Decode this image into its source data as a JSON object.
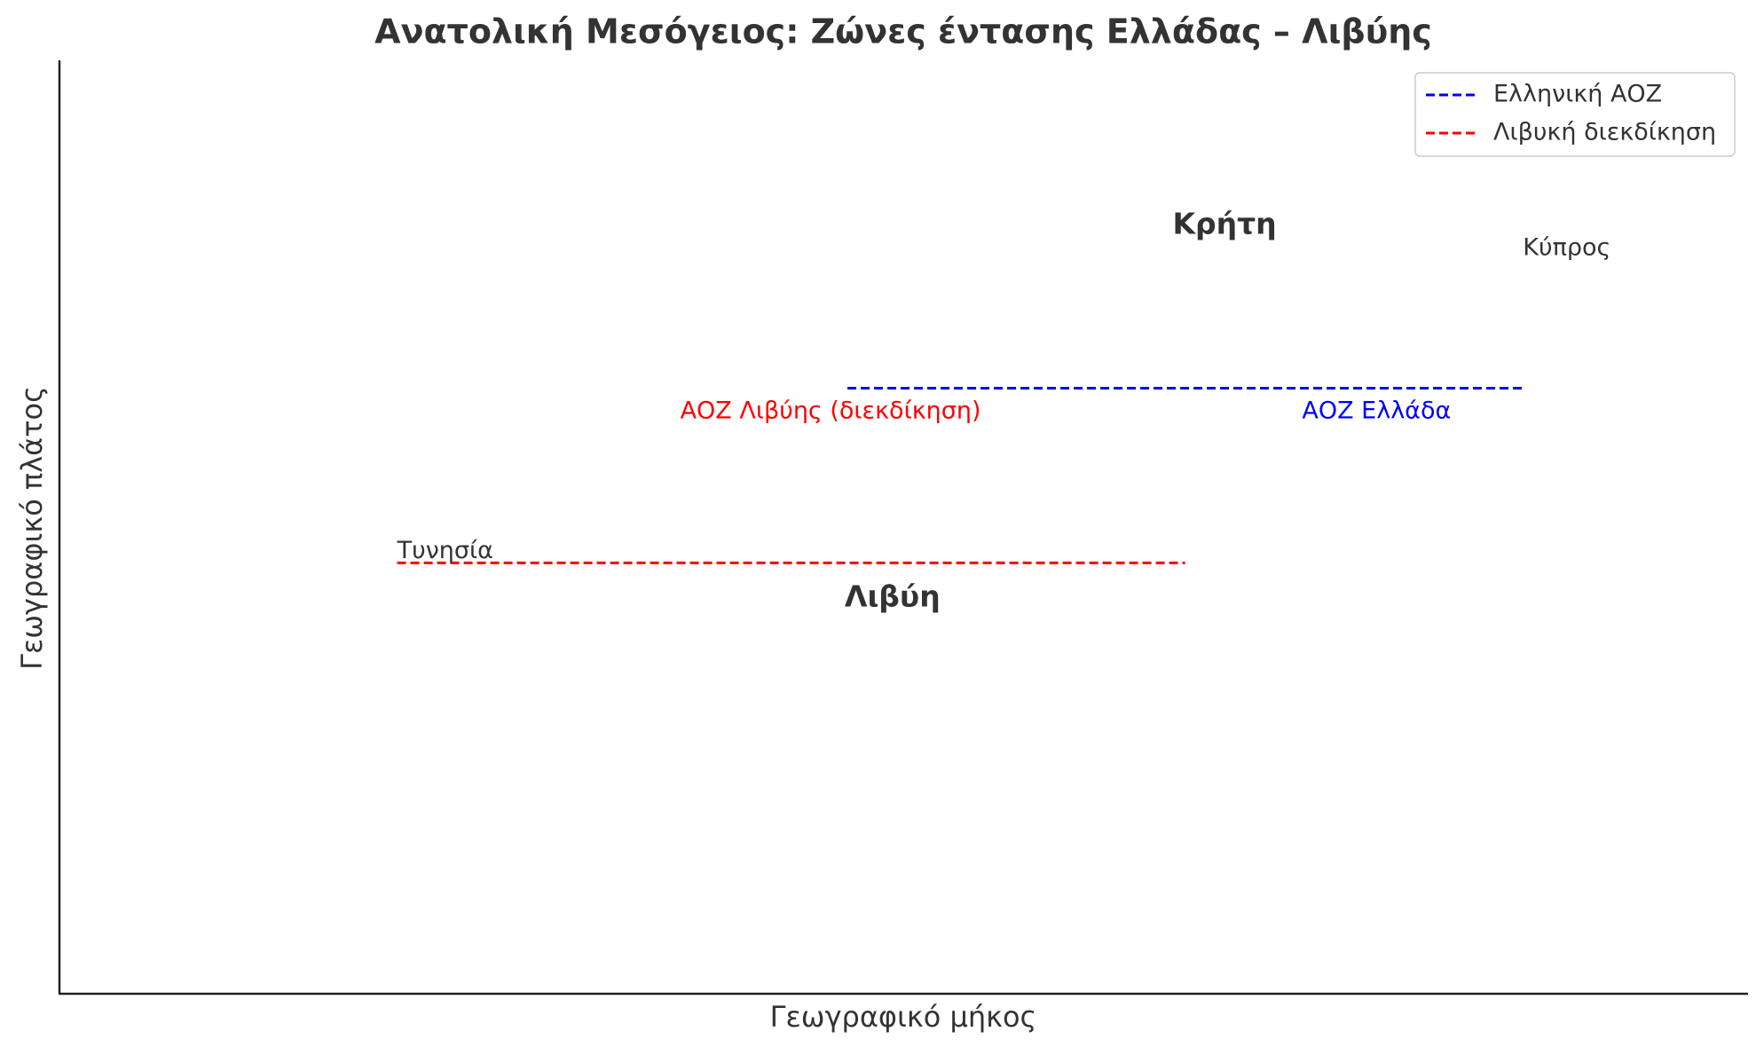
{
  "chart_data": {
    "type": "line",
    "title": "Ανατολική Μεσόγειος: Ζώνες έντασης Ελλάδας – Λιβύης",
    "x_label": "Γεωγραφικό μήκος",
    "y_label": "Γεωγραφικό πλάτος",
    "xlim": [
      5,
      35
    ],
    "ylim": [
      30,
      38
    ],
    "xticks": [],
    "yticks": [],
    "grid": false,
    "legend": "upper right",
    "series": [
      {
        "name": "Ελληνική ΑΟΖ",
        "color": "#0000ff",
        "linestyle": "dashed",
        "x": [
          19,
          31
        ],
        "values": [
          35.2,
          35.2
        ]
      },
      {
        "name": "Λιβυκή διεκδίκηση",
        "color": "#ff0000",
        "linestyle": "dashed",
        "x": [
          11,
          25
        ],
        "values": [
          33.7,
          33.7
        ]
      }
    ],
    "annotations": [
      {
        "text": "Κρήτη",
        "x": 25.7,
        "y": 36.6,
        "bold": true,
        "ha": "center",
        "color": "#333333"
      },
      {
        "text": "Κύπρος",
        "x": 31,
        "y": 36.4,
        "bold": false,
        "ha": "left",
        "color": "#333333"
      },
      {
        "text": "ΑΟΖ Λιβύης (διεκδίκηση)",
        "x": 18.7,
        "y": 35.0,
        "bold": false,
        "ha": "center",
        "color": "#ff0000"
      },
      {
        "text": "ΑΟΖ Ελλάδα",
        "x": 28.4,
        "y": 35.0,
        "bold": false,
        "ha": "center",
        "color": "#0000ff"
      },
      {
        "text": "Τυνησία",
        "x": 11,
        "y": 33.8,
        "bold": false,
        "ha": "left",
        "color": "#333333"
      },
      {
        "text": "Λιβύη",
        "x": 19.8,
        "y": 33.4,
        "bold": true,
        "ha": "center",
        "color": "#333333"
      }
    ]
  }
}
